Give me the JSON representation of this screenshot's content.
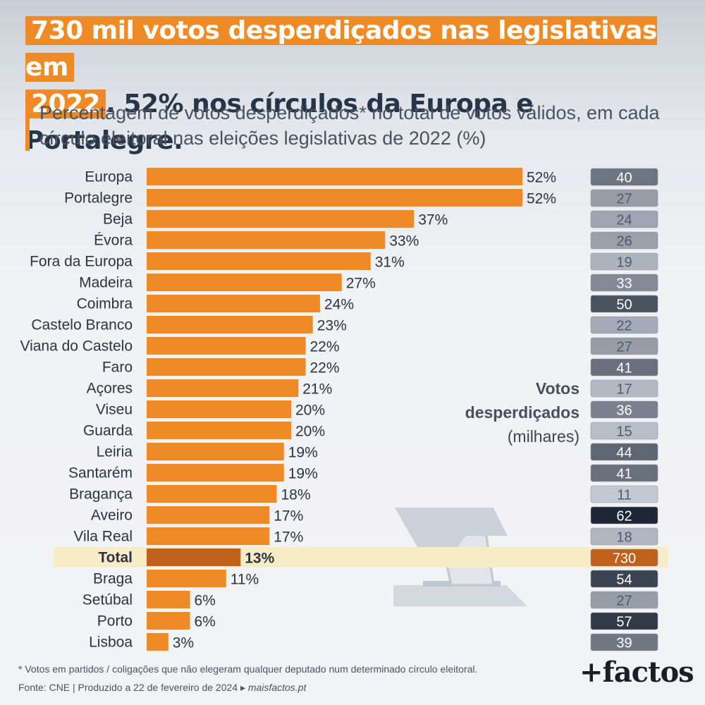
{
  "title": {
    "hl1": "730 mil votos desperdiçados nas legislativas em",
    "hl2": "2022",
    "rest": ". 52% nos círculos da Europa e Portalegre."
  },
  "subtitle": "Percentagem de votos desperdiçados* no total de votos válidos, em cada círculo eleitoral nas eleições legislativas de 2022 (%)",
  "side_label": {
    "line1": "Votos",
    "line2": "desperdiçados",
    "line3": "(milhares)"
  },
  "footnote": {
    "line1": "* Votos em partidos / coligações que não elegeram qualquer deputado num determinado círculo eleitoral.",
    "line2_prefix": "Fonte: CNE  |  Produzido a 22 de fevereiro de 2024 ▸ ",
    "line2_link": "maisfactos.pt"
  },
  "logo": "+factos",
  "colors": {
    "bar": "#ef8a25",
    "total_bar": "#c0601d",
    "total_highlight": "#f6edc8",
    "accent": "#ef8a25"
  },
  "chart_data": {
    "type": "bar",
    "orientation": "horizontal",
    "categories": [
      "Europa",
      "Portalegre",
      "Beja",
      "Évora",
      "Fora da Europa",
      "Madeira",
      "Coimbra",
      "Castelo Branco",
      "Viana do Castelo",
      "Faro",
      "Açores",
      "Viseu",
      "Guarda",
      "Leiria",
      "Santarém",
      "Bragança",
      "Aveiro",
      "Vila Real",
      "Total",
      "Braga",
      "Setúbal",
      "Porto",
      "Lisboa"
    ],
    "series": [
      {
        "values": [
          52,
          52,
          37,
          33,
          31,
          27,
          24,
          23,
          22,
          22,
          21,
          20,
          20,
          19,
          19,
          18,
          17,
          17,
          13,
          11,
          6,
          6,
          3
        ],
        "value_suffix": "%"
      },
      {
        "values": [
          40,
          27,
          24,
          26,
          19,
          33,
          50,
          22,
          27,
          41,
          17,
          36,
          15,
          44,
          41,
          11,
          62,
          18,
          730,
          54,
          27,
          57,
          39
        ]
      }
    ],
    "total_index": 18,
    "grid": false
  }
}
